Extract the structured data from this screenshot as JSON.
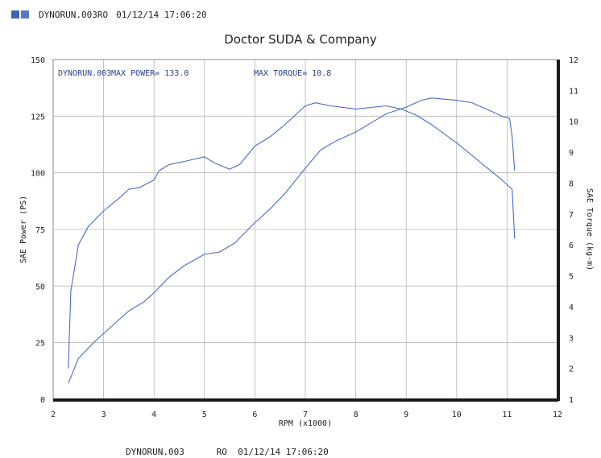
{
  "header": {
    "run_label": "DYNORUN.003RO",
    "timestamp": "01/12/14 17:06:20",
    "brand_colors": [
      "#3d64b8",
      "#5579c7"
    ]
  },
  "footer": {
    "run": "DYNORUN.003",
    "mode": "RO",
    "timestamp": "01/12/14 17:06:20"
  },
  "chart_data": {
    "type": "line",
    "title": "Doctor SUDA & Company",
    "xlabel": "RPM (x1000)",
    "ylabel_left": "SAE Power (PS)",
    "ylabel_right": "SAE Torque (kg-m)",
    "xlim": [
      2,
      12
    ],
    "ylim_left": [
      0,
      150
    ],
    "ylim_right": [
      1,
      12
    ],
    "x_ticks": [
      "2",
      "3",
      "4",
      "5",
      "6",
      "7",
      "8",
      "9",
      "10",
      "11",
      "12"
    ],
    "y_ticks_left": [
      "0",
      "25",
      "50",
      "75",
      "100",
      "125",
      "150"
    ],
    "y_ticks_right": [
      "1",
      "2",
      "3",
      "4",
      "5",
      "6",
      "7",
      "8",
      "9",
      "10",
      "11",
      "12"
    ],
    "grid": true,
    "line_color": "#4a6bc9",
    "annotations": {
      "run": "DYNORUN.003",
      "max_power": "MAX POWER= 133.0",
      "max_torque": "MAX TORQUE= 10.8"
    },
    "series": [
      {
        "axis": "left",
        "points": [
          [
            2.3,
            7
          ],
          [
            2.5,
            18
          ],
          [
            2.8,
            25
          ],
          [
            3.0,
            29
          ],
          [
            3.3,
            35
          ],
          [
            3.5,
            39
          ],
          [
            3.8,
            43
          ],
          [
            4.0,
            47
          ],
          [
            4.3,
            54
          ],
          [
            4.6,
            59
          ],
          [
            5.0,
            64
          ],
          [
            5.3,
            65
          ],
          [
            5.6,
            69
          ],
          [
            6.0,
            78
          ],
          [
            6.3,
            84
          ],
          [
            6.6,
            91
          ],
          [
            7.0,
            102
          ],
          [
            7.3,
            110
          ],
          [
            7.6,
            114
          ],
          [
            8.0,
            118
          ],
          [
            8.3,
            122
          ],
          [
            8.6,
            126
          ],
          [
            9.0,
            129
          ],
          [
            9.3,
            132
          ],
          [
            9.5,
            133
          ],
          [
            10.0,
            132
          ],
          [
            10.3,
            131
          ],
          [
            10.6,
            128
          ],
          [
            10.9,
            125
          ],
          [
            11.05,
            124
          ],
          [
            11.1,
            116
          ],
          [
            11.15,
            101
          ]
        ]
      },
      {
        "axis": "right",
        "points": [
          [
            2.3,
            2.0
          ],
          [
            2.35,
            4.5
          ],
          [
            2.5,
            6.0
          ],
          [
            2.7,
            6.6
          ],
          [
            3.0,
            7.1
          ],
          [
            3.3,
            7.5
          ],
          [
            3.5,
            7.8
          ],
          [
            3.7,
            7.85
          ],
          [
            4.0,
            8.1
          ],
          [
            4.1,
            8.4
          ],
          [
            4.3,
            8.6
          ],
          [
            4.6,
            8.7
          ],
          [
            5.0,
            8.85
          ],
          [
            5.2,
            8.65
          ],
          [
            5.5,
            8.45
          ],
          [
            5.7,
            8.6
          ],
          [
            6.0,
            9.2
          ],
          [
            6.3,
            9.5
          ],
          [
            6.6,
            9.9
          ],
          [
            7.0,
            10.5
          ],
          [
            7.2,
            10.6
          ],
          [
            7.5,
            10.5
          ],
          [
            8.0,
            10.4
          ],
          [
            8.3,
            10.45
          ],
          [
            8.6,
            10.5
          ],
          [
            8.9,
            10.4
          ],
          [
            9.2,
            10.2
          ],
          [
            9.5,
            9.9
          ],
          [
            10.0,
            9.3
          ],
          [
            10.3,
            8.9
          ],
          [
            10.6,
            8.5
          ],
          [
            10.9,
            8.1
          ],
          [
            11.0,
            7.95
          ],
          [
            11.1,
            7.8
          ],
          [
            11.15,
            6.2
          ]
        ]
      }
    ]
  }
}
